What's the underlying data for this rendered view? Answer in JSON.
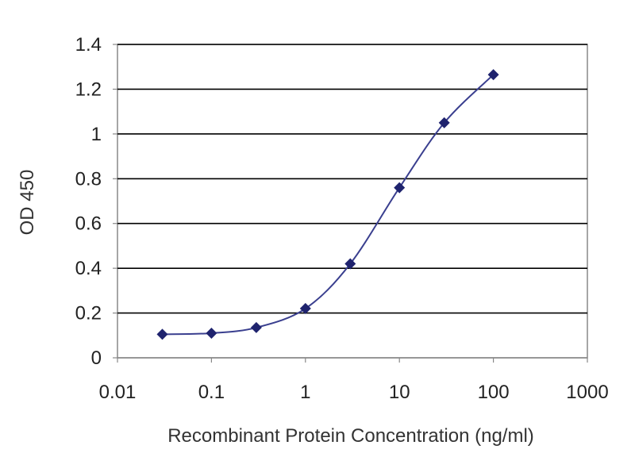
{
  "chart_data": {
    "type": "line",
    "title": "",
    "xlabel": "Recombinant Protein Concentration (ng/ml)",
    "ylabel": "OD 450",
    "x_scale": "log",
    "xlim": [
      0.01,
      1000
    ],
    "ylim": [
      0,
      1.4
    ],
    "x_ticks": [
      0.01,
      0.1,
      1,
      10,
      100,
      1000
    ],
    "x_tick_labels": [
      "0.01",
      "0.1",
      "1",
      "10",
      "100",
      "1000"
    ],
    "y_ticks": [
      0,
      0.2,
      0.4,
      0.6,
      0.8,
      1,
      1.2,
      1.4
    ],
    "y_tick_labels": [
      "0",
      "0.2",
      "0.4",
      "0.6",
      "0.8",
      "1",
      "1.2",
      "1.4"
    ],
    "grid": "horizontal",
    "legend": "none",
    "series": [
      {
        "x": [
          0.03,
          0.1,
          0.3,
          1,
          3,
          10,
          30,
          100
        ],
        "y": [
          0.105,
          0.11,
          0.135,
          0.22,
          0.42,
          0.76,
          1.05,
          1.265
        ]
      }
    ],
    "colors": {
      "line": "#3a3f8f",
      "marker": "#1f236e",
      "grid": "#000000",
      "frame": "#888888"
    }
  }
}
